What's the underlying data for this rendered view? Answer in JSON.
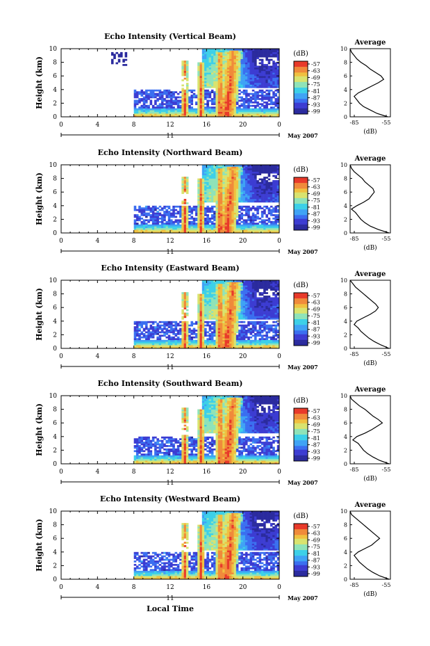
{
  "figure": {
    "xlabel": "Local Time",
    "date_label": "May 2007",
    "day_label": "11",
    "colorbar_unit": "(dB)",
    "profile_title": "Average",
    "profile_xlabel": "(dB)",
    "ylabel": "Height (km)"
  },
  "colors": {
    "scale": [
      "#2b2b9e",
      "#3c3cd2",
      "#3b6ff0",
      "#3fa3f5",
      "#3dd0e8",
      "#8fe3b8",
      "#d9e36e",
      "#f0c040",
      "#f08a3a",
      "#e83a2a"
    ]
  },
  "chart_data": [
    {
      "type": "heatmap",
      "title": "Echo Intensity (Vertical Beam)",
      "ylabel": "Height (km)",
      "x_ticks": [
        "0",
        "4",
        "8",
        "12",
        "16",
        "20",
        "0"
      ],
      "y_ticks": [
        "0",
        "2",
        "4",
        "6",
        "8",
        "10"
      ],
      "xlim": [
        0,
        24
      ],
      "ylim": [
        0,
        10
      ],
      "colorbar_ticks": [
        "-57",
        "-63",
        "-69",
        "-75",
        "-81",
        "-87",
        "-93",
        "-99"
      ],
      "profile": {
        "title": "Average",
        "xlabel": "(dB)",
        "x_ticks": [
          "-85",
          "-55"
        ],
        "y_ticks": [
          "0",
          "2",
          "4",
          "6",
          "8",
          "10"
        ],
        "height_km": [
          0,
          0.5,
          1,
          1.5,
          2,
          2.5,
          3,
          3.5,
          4,
          4.5,
          5,
          5.5,
          6,
          6.5,
          7,
          7.5,
          8,
          8.5,
          9,
          9.5,
          10
        ],
        "value_db": [
          -57,
          -65,
          -70,
          -75,
          -78,
          -80,
          -82,
          -79,
          -74,
          -69,
          -64,
          -60,
          -62,
          -66,
          -70,
          -73,
          -77,
          -80,
          -82,
          -84,
          -85
        ]
      }
    },
    {
      "type": "heatmap",
      "title": "Echo Intensity (Northward Beam)",
      "ylabel": "Height (km)",
      "x_ticks": [
        "0",
        "4",
        "8",
        "12",
        "16",
        "20",
        "0"
      ],
      "y_ticks": [
        "0",
        "2",
        "4",
        "6",
        "8",
        "10"
      ],
      "xlim": [
        0,
        24
      ],
      "ylim": [
        0,
        10
      ],
      "colorbar_ticks": [
        "-57",
        "-63",
        "-69",
        "-75",
        "-81",
        "-87",
        "-93",
        "-99"
      ],
      "profile": {
        "title": "Average",
        "xlabel": "(dB)",
        "x_ticks": [
          "-85",
          "-55"
        ],
        "y_ticks": [
          "0",
          "2",
          "4",
          "6",
          "8",
          "10"
        ],
        "height_km": [
          0,
          0.5,
          1,
          1.5,
          2,
          2.5,
          3,
          3.5,
          4,
          4.5,
          5,
          5.5,
          6,
          6.5,
          7,
          7.5,
          8,
          8.5,
          9,
          9.5,
          10
        ],
        "value_db": [
          -56,
          -64,
          -70,
          -74,
          -77,
          -79,
          -81,
          -84,
          -80,
          -75,
          -71,
          -69,
          -67,
          -68,
          -71,
          -74,
          -76,
          -79,
          -82,
          -84,
          -85
        ]
      }
    },
    {
      "type": "heatmap",
      "title": "Echo Intensity (Eastward Beam)",
      "ylabel": "Height (km)",
      "x_ticks": [
        "0",
        "4",
        "8",
        "12",
        "16",
        "20",
        "0"
      ],
      "y_ticks": [
        "0",
        "2",
        "4",
        "6",
        "8",
        "10"
      ],
      "xlim": [
        0,
        24
      ],
      "ylim": [
        0,
        10
      ],
      "colorbar_ticks": [
        "-57",
        "-63",
        "-69",
        "-75",
        "-81",
        "-87",
        "-93",
        "-99"
      ],
      "profile": {
        "title": "Average",
        "xlabel": "(dB)",
        "x_ticks": [
          "-85",
          "-55"
        ],
        "y_ticks": [
          "0",
          "2",
          "4",
          "6",
          "8",
          "10"
        ],
        "height_km": [
          0,
          0.5,
          1,
          1.5,
          2,
          2.5,
          3,
          3.5,
          4,
          4.5,
          5,
          5.5,
          6,
          6.5,
          7,
          7.5,
          8,
          8.5,
          9,
          9.5,
          10
        ],
        "value_db": [
          -56,
          -62,
          -67,
          -71,
          -74,
          -77,
          -79,
          -82,
          -80,
          -75,
          -70,
          -66,
          -64,
          -66,
          -69,
          -72,
          -75,
          -78,
          -81,
          -83,
          -85
        ]
      }
    },
    {
      "type": "heatmap",
      "title": "Echo Intensity (Southward Beam)",
      "ylabel": "Height (km)",
      "x_ticks": [
        "0",
        "4",
        "8",
        "12",
        "16",
        "20",
        "0"
      ],
      "y_ticks": [
        "0",
        "2",
        "4",
        "6",
        "8",
        "10"
      ],
      "xlim": [
        0,
        24
      ],
      "ylim": [
        0,
        10
      ],
      "colorbar_ticks": [
        "-57",
        "-63",
        "-69",
        "-75",
        "-81",
        "-87",
        "-93",
        "-99"
      ],
      "profile": {
        "title": "Average",
        "xlabel": "(dB)",
        "x_ticks": [
          "-85",
          "-55"
        ],
        "y_ticks": [
          "0",
          "2",
          "4",
          "6",
          "8",
          "10"
        ],
        "height_km": [
          0,
          0.5,
          1,
          1.5,
          2,
          2.5,
          3,
          3.5,
          4,
          4.5,
          5,
          5.5,
          6,
          6.5,
          7,
          7.5,
          8,
          8.5,
          9,
          9.5,
          10
        ],
        "value_db": [
          -56,
          -63,
          -68,
          -72,
          -75,
          -77,
          -79,
          -83,
          -80,
          -74,
          -69,
          -65,
          -61,
          -64,
          -68,
          -71,
          -74,
          -78,
          -81,
          -84,
          -85
        ]
      }
    },
    {
      "type": "heatmap",
      "title": "Echo Intensity (Westward Beam)",
      "ylabel": "Height (km)",
      "x_ticks": [
        "0",
        "4",
        "8",
        "12",
        "16",
        "20",
        "0"
      ],
      "y_ticks": [
        "0",
        "2",
        "4",
        "6",
        "8",
        "10"
      ],
      "xlim": [
        0,
        24
      ],
      "ylim": [
        0,
        10
      ],
      "colorbar_ticks": [
        "-57",
        "-63",
        "-69",
        "-75",
        "-81",
        "-87",
        "-93",
        "-99"
      ],
      "profile": {
        "title": "Average",
        "xlabel": "(dB)",
        "x_ticks": [
          "-85",
          "-55"
        ],
        "y_ticks": [
          "0",
          "2",
          "4",
          "6",
          "8",
          "10"
        ],
        "height_km": [
          0,
          0.5,
          1,
          1.5,
          2,
          2.5,
          3,
          3.5,
          4,
          4.5,
          5,
          5.5,
          6,
          6.5,
          7,
          7.5,
          8,
          8.5,
          9,
          9.5,
          10
        ],
        "value_db": [
          -56,
          -63,
          -68,
          -72,
          -75,
          -78,
          -80,
          -82,
          -79,
          -74,
          -69,
          -66,
          -63,
          -66,
          -69,
          -72,
          -75,
          -78,
          -81,
          -84,
          -85
        ]
      }
    }
  ]
}
